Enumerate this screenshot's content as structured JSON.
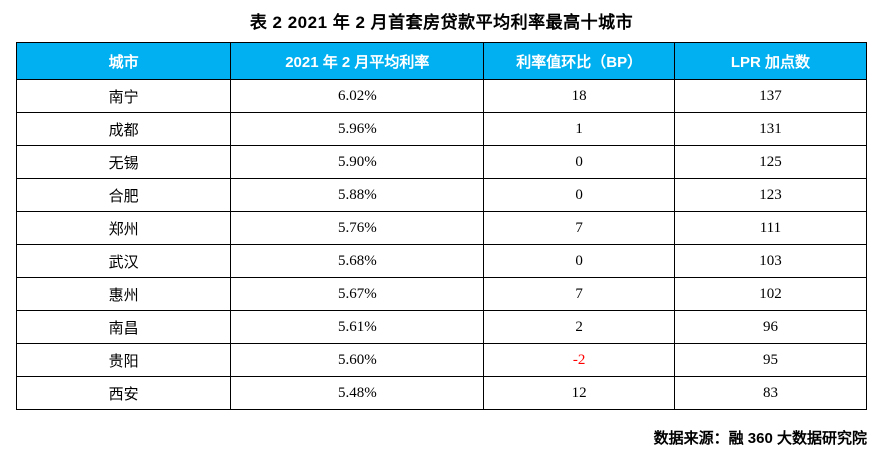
{
  "page": {
    "title": "表 2  2021 年 2 月首套房贷款平均利率最高十城市"
  },
  "table": {
    "columns": [
      "城市",
      "2021 年 2 月平均利率",
      "利率值环比（BP）",
      "LPR 加点数"
    ],
    "rows": [
      [
        "南宁",
        "6.02%",
        "18",
        "137"
      ],
      [
        "成都",
        "5.96%",
        "1",
        "131"
      ],
      [
        "无锡",
        "5.90%",
        "0",
        "125"
      ],
      [
        "合肥",
        "5.88%",
        "0",
        "123"
      ],
      [
        "郑州",
        "5.76%",
        "7",
        "111"
      ],
      [
        "武汉",
        "5.68%",
        "0",
        "103"
      ],
      [
        "惠州",
        "5.67%",
        "7",
        "102"
      ],
      [
        "南昌",
        "5.61%",
        "2",
        "96"
      ],
      [
        "贵阳",
        "5.60%",
        "-2",
        "95"
      ],
      [
        "西安",
        "5.48%",
        "12",
        "83"
      ]
    ]
  },
  "footer": {
    "source": "数据来源：融 360 大数据研究院"
  },
  "colors": {
    "header_bg": "#00B0F0",
    "header_text": "#FFFFFF",
    "border": "#000000",
    "negative_value": "#FF0000"
  },
  "chart_data": {
    "type": "table",
    "title": "表 2 2021 年 2 月首套房贷款平均利率最高十城市",
    "columns": [
      "城市",
      "2021 年 2 月平均利率",
      "利率值环比（BP）",
      "LPR 加点数"
    ],
    "rows": [
      [
        "南宁",
        "6.02%",
        "18",
        "137"
      ],
      [
        "成都",
        "5.96%",
        "1",
        "131"
      ],
      [
        "无锡",
        "5.90%",
        "0",
        "125"
      ],
      [
        "合肥",
        "5.88%",
        "0",
        "123"
      ],
      [
        "郑州",
        "5.76%",
        "7",
        "111"
      ],
      [
        "武汉",
        "5.68%",
        "0",
        "103"
      ],
      [
        "惠州",
        "5.67%",
        "7",
        "102"
      ],
      [
        "南昌",
        "5.61%",
        "2",
        "96"
      ],
      [
        "贵阳",
        "5.60%",
        "-2",
        "95"
      ],
      [
        "西安",
        "5.48%",
        "12",
        "83"
      ]
    ],
    "source": "数据来源：融 360 大数据研究院"
  }
}
